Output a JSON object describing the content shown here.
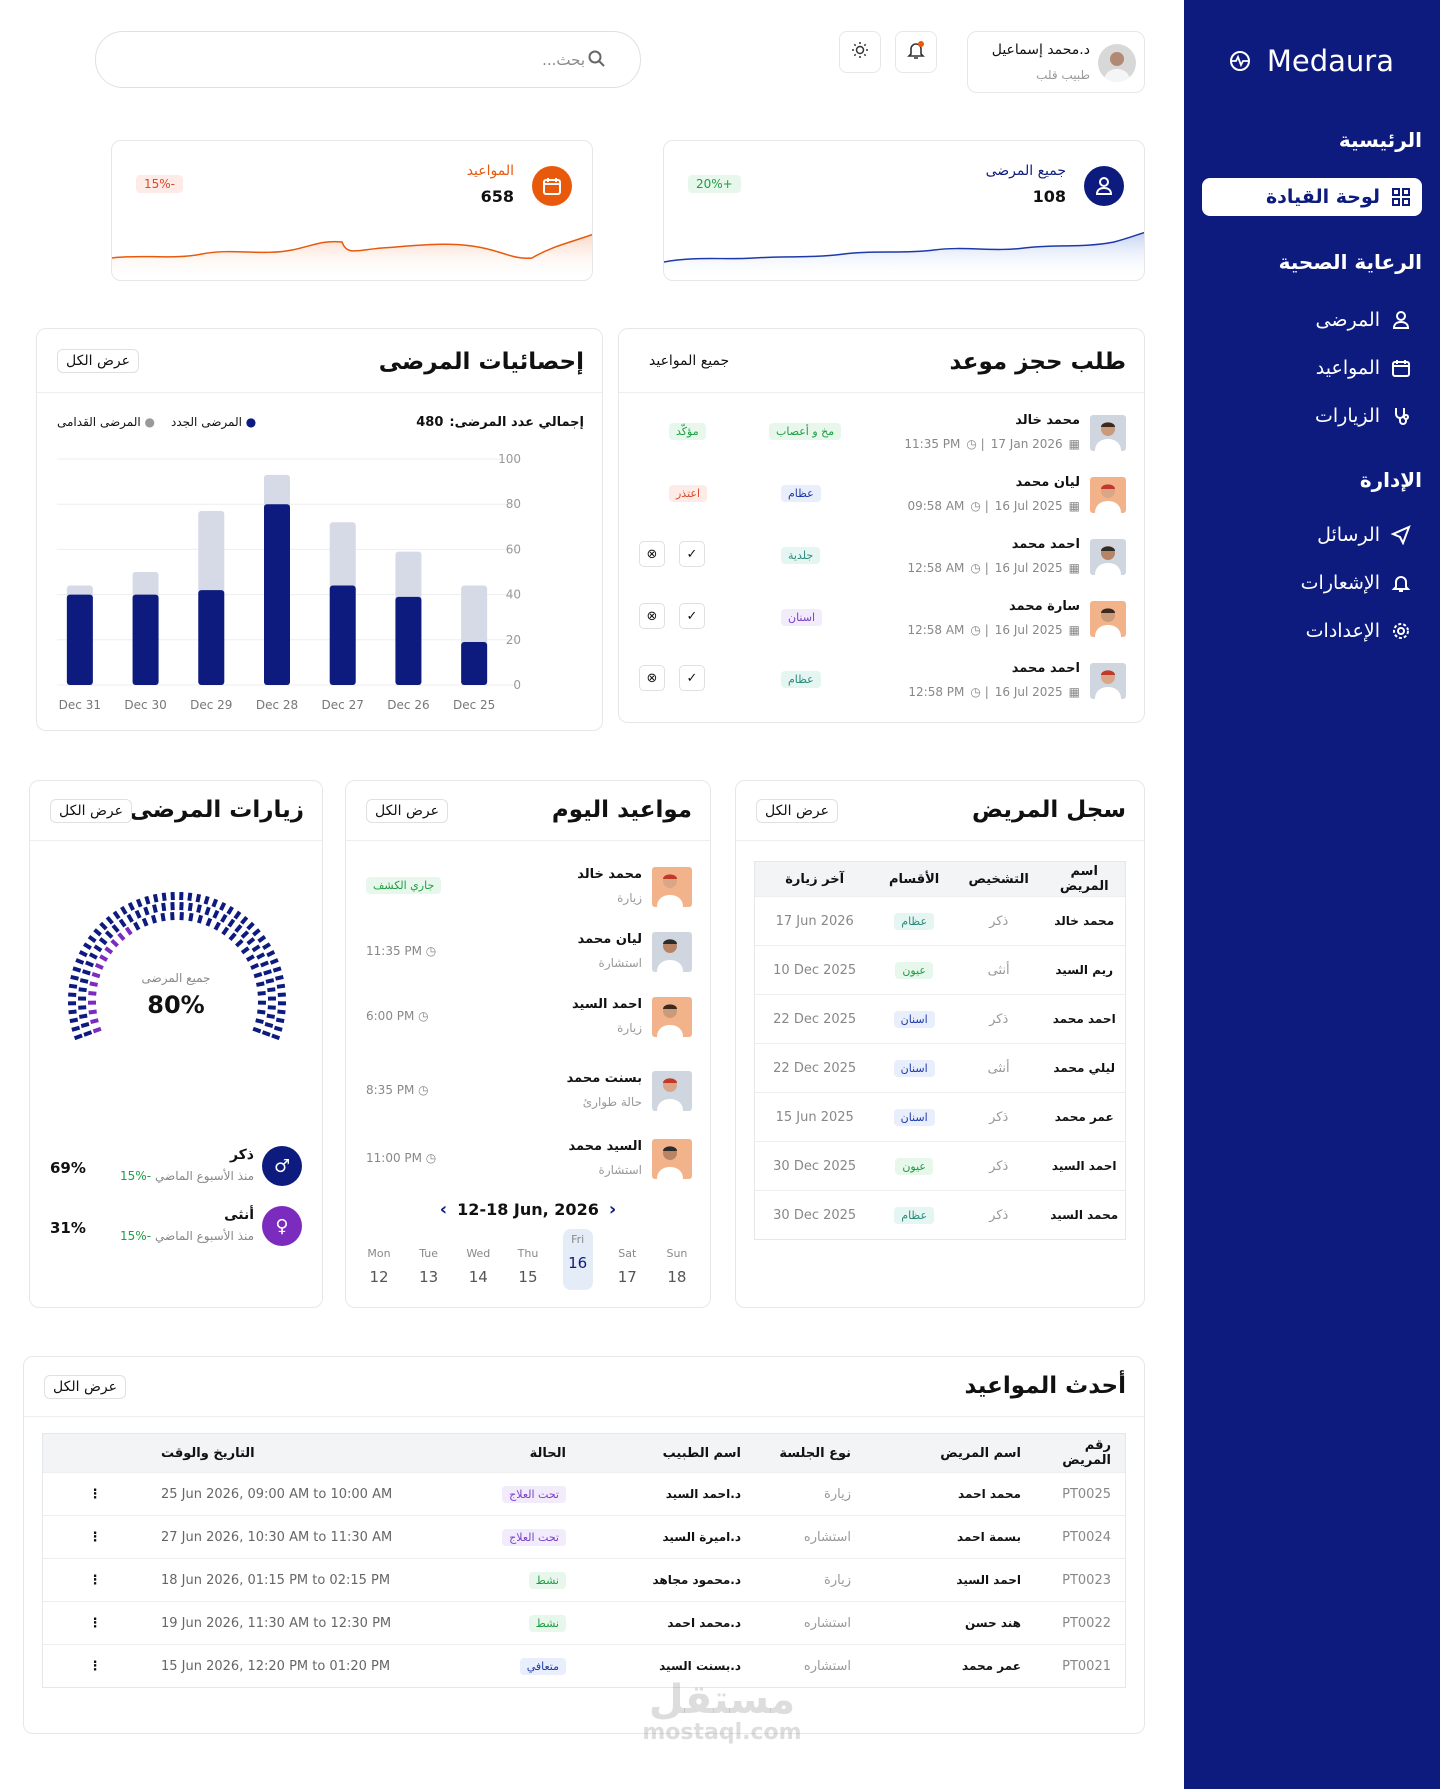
{
  "app": {
    "name": "Medaura"
  },
  "sidebar": {
    "section_main": "الرئيسية",
    "dashboard": "لوحة القيادة",
    "section_care": "الرعاية الصحية",
    "patients": "المرضى",
    "appointments": "المواعيد",
    "visits": "الزيارات",
    "section_admin": "الإدارة",
    "messages": "الرسائل",
    "notifications": "الإشعارات",
    "settings": "الإعدادات"
  },
  "header": {
    "search_placeholder": "بحث...",
    "user_name": "د.محمد إسماعيل",
    "user_role": "طبيب قلب"
  },
  "stats": [
    {
      "title": "جميع المرضى",
      "value": "108",
      "change": "+20%",
      "color": "#0d1b7e"
    },
    {
      "title": "المواعيد",
      "value": "658",
      "change": "-15%",
      "color": "#e8590c"
    }
  ],
  "patient_stats": {
    "title": "إحصائيات المرضى",
    "view_all": "عرض الكل",
    "total_label": "إجمالي عدد المرضى:",
    "total": "480",
    "legend_new": "المرضى الجدد",
    "legend_old": "المرضى القدامى"
  },
  "chart_data": {
    "type": "bar",
    "categories": [
      "25 Dec",
      "26 Dec",
      "27 Dec",
      "28 Dec",
      "29 Dec",
      "30 Dec",
      "31 Dec"
    ],
    "series": [
      {
        "name": "المرضى الجدد",
        "values": [
          19,
          39,
          44,
          80,
          42,
          40,
          40
        ]
      },
      {
        "name": "المرضى القدامى",
        "values": [
          44,
          59,
          72,
          93,
          77,
          50,
          44
        ]
      }
    ],
    "yticks": [
      "0",
      "20",
      "40",
      "60",
      "80",
      "100"
    ],
    "ylim": [
      0,
      100
    ]
  },
  "booking": {
    "title": "طلب حجز موعد",
    "filter": "جميع المواعيد",
    "items": [
      {
        "name": "محمد خالد",
        "date": "17 Jan 2026",
        "time": "11:35 PM",
        "dept": "مخ و أعصاب",
        "dept_color": "green",
        "status": "مؤكّد",
        "status_color": "green",
        "actions": false
      },
      {
        "name": "ليان محمد",
        "date": "16 Jul 2025",
        "time": "09:58 AM",
        "dept": "عظام",
        "dept_color": "blue",
        "status": "اعتذر",
        "status_color": "red",
        "actions": false
      },
      {
        "name": "احمد محمد",
        "date": "16 Jul 2025",
        "time": "12:58 AM",
        "dept": "جلدية",
        "dept_color": "teal",
        "status": "",
        "status_color": "",
        "actions": true
      },
      {
        "name": "سارة محمد",
        "date": "16 Jul 2025",
        "time": "12:58 AM",
        "dept": "اسنان",
        "dept_color": "purple",
        "status": "",
        "status_color": "",
        "actions": true
      },
      {
        "name": "احمد محمد",
        "date": "16 Jul 2025",
        "time": "12:58 PM",
        "dept": "عظام",
        "dept_color": "teal",
        "status": "",
        "status_color": "",
        "actions": true
      }
    ]
  },
  "record": {
    "title": "سجل المريض",
    "view_all": "عرض الكل",
    "headers": [
      "اسم المريض",
      "التشخيص",
      "الأقسام",
      "آخر زيارة"
    ],
    "rows": [
      [
        "محمد خالد",
        "ذكر",
        "عظام",
        "17 Jun 2026"
      ],
      [
        "ريم السيد",
        "أنثى",
        "عيون",
        "10 Dec 2025"
      ],
      [
        "احمد محمد",
        "ذكر",
        "اسنان",
        "22 Dec 2025"
      ],
      [
        "ليلي محمد",
        "أنثى",
        "اسنان",
        "22 Dec 2025"
      ],
      [
        "عمر محمد",
        "ذكر",
        "اسنان",
        "15 Jun 2025"
      ],
      [
        "احمد  السيد",
        "ذكر",
        "عيون",
        "30 Dec 2025"
      ],
      [
        "محمد السيد",
        "ذكر",
        "عظام",
        "30 Dec 2025"
      ]
    ]
  },
  "today": {
    "title": "مواعيد اليوم",
    "view_all": "عرض الكل",
    "items": [
      {
        "name": "محمد خالد",
        "type": "زيارة",
        "time": "جاري الكشف",
        "live": true
      },
      {
        "name": "ليان محمد",
        "type": "استشارة",
        "time": "11:35 PM",
        "live": false
      },
      {
        "name": "احمد السيد",
        "type": "زيارة",
        "time": "6:00 PM",
        "live": false
      },
      {
        "name": "بسنت محمد",
        "type": "حالة طوارئ",
        "time": "8:35 PM",
        "live": false
      },
      {
        "name": "السيد محمد",
        "type": "استشارة",
        "time": "11:00 PM",
        "live": false
      }
    ],
    "week_label": "12-18 Jun, 2026",
    "days": [
      {
        "d": "Mon",
        "n": "12"
      },
      {
        "d": "Tue",
        "n": "13"
      },
      {
        "d": "Wed",
        "n": "14"
      },
      {
        "d": "Thu",
        "n": "15"
      },
      {
        "d": "Fri",
        "n": "16"
      },
      {
        "d": "Sat",
        "n": "17"
      },
      {
        "d": "Sun",
        "n": "18"
      }
    ]
  },
  "visits": {
    "title": "زيارات المرضى",
    "view_all": "عرض الكل",
    "gauge_label": "جميع المرضى",
    "gauge_value": "80%",
    "gauge_fraction": 0.8,
    "male_label": "ذكر",
    "male_pct": "69%",
    "male_change": "-15%",
    "male_note": "منذ الأسبوع الماضي",
    "female_label": "أنثى",
    "female_pct": "31%",
    "female_change": "-15%",
    "female_note": "منذ الأسبوع الماضي"
  },
  "latest": {
    "title": "أحدث المواعيد",
    "view_all": "عرض الكل",
    "headers": [
      "رقم المريض",
      "اسم المريض",
      "نوع الجلسة",
      "اسم الطبيب",
      "الحالة",
      "التاريخ والوقت"
    ],
    "rows": [
      [
        "PT0025",
        "محمد احمد",
        "زيارة",
        "د.احمد السيد",
        "تحت العلاج",
        "25 Jun 2026, 09:00 AM to 10:00 AM"
      ],
      [
        "PT0024",
        "بسمة احمد",
        "استشاره",
        "د.اميرة السيد",
        "تحت العلاج",
        "27 Jun 2026, 10:30 AM to 11:30 AM"
      ],
      [
        "PT0023",
        "احمد السيد",
        "زيارة",
        "د.محمود مجاهد",
        "نشط",
        "18 Jun 2026, 01:15 PM to 02:15 PM"
      ],
      [
        "PT0022",
        "هند حسن",
        "استشاره",
        "د.محمد احمد",
        "نشط",
        "19 Jun 2026, 11:30 AM to 12:30 PM"
      ],
      [
        "PT0021",
        "عمر محمد",
        "استشاره",
        "د.بسنت السيد",
        "متعافي",
        "15 Jun 2026, 12:20 PM to 01:20 PM"
      ]
    ]
  },
  "watermark": {
    "ar": "مستقل",
    "en": "mostaql.com"
  }
}
